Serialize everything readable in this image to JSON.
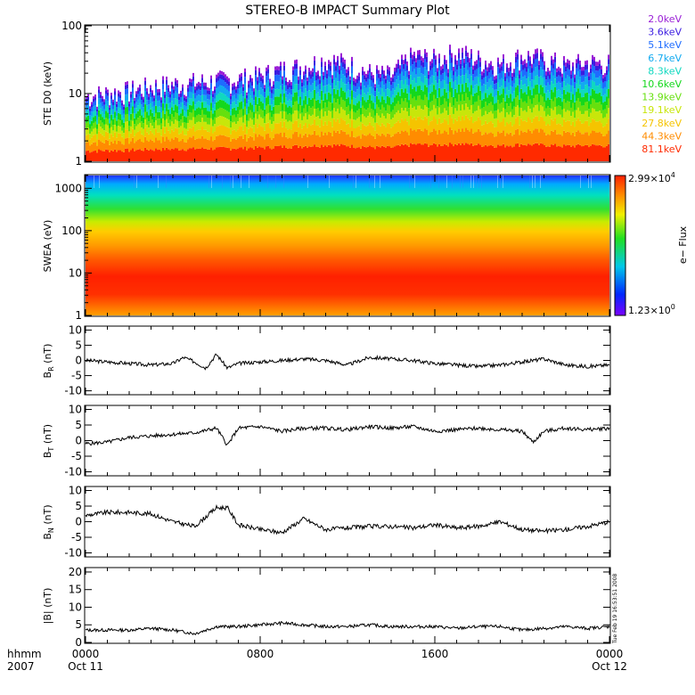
{
  "title": "STEREO-B IMPACT Summary Plot",
  "footer": {
    "time_label": "hhmm",
    "year_label": "2007",
    "timestamp": "Tue Feb 19 16:53:51 2008"
  },
  "colorbar": {
    "max_label": "2.99×10",
    "max_exp": "4",
    "min_label": "1.23×10",
    "min_exp": "0",
    "axis_label": "e− Flux"
  },
  "ste_legend": [
    {
      "label": "2.0keV",
      "color": "#9a1fd6"
    },
    {
      "label": "3.6keV",
      "color": "#3a1be0"
    },
    {
      "label": "5.1keV",
      "color": "#1e6cff"
    },
    {
      "label": "6.7keV",
      "color": "#12aaf0"
    },
    {
      "label": "8.3keV",
      "color": "#10d8c0"
    },
    {
      "label": "10.6keV",
      "color": "#14d81c"
    },
    {
      "label": "13.9keV",
      "color": "#66e00e"
    },
    {
      "label": "19.1keV",
      "color": "#c8e60a"
    },
    {
      "label": "27.8keV",
      "color": "#f5c400"
    },
    {
      "label": "44.3keV",
      "color": "#ff8c00"
    },
    {
      "label": "81.1keV",
      "color": "#ff2a00"
    }
  ],
  "chart_data": [
    {
      "panel": "STE D0",
      "type": "area",
      "ylabel": "STE D0 (keV)",
      "yscale": "log",
      "ylim": [
        1,
        100
      ],
      "y_ticks": [
        "1",
        "10",
        "100"
      ],
      "x_time_hours": [
        0,
        1,
        2,
        3,
        4,
        5,
        6,
        7,
        8,
        9,
        10,
        11,
        12,
        13,
        14,
        15,
        16,
        17,
        18,
        19,
        20,
        21,
        22,
        23,
        24
      ],
      "top_envelope_keV": [
        10,
        11,
        12,
        14,
        15,
        16,
        17,
        18,
        20,
        25,
        28,
        35,
        30,
        22,
        20,
        40,
        35,
        45,
        35,
        30,
        40,
        35,
        28,
        32,
        30
      ]
    },
    {
      "panel": "SWEA",
      "type": "heatmap",
      "ylabel": "SWEA (eV)",
      "yscale": "log",
      "ylim": [
        1,
        2000
      ],
      "y_ticks": [
        "1",
        "10",
        "100",
        "1000"
      ]
    },
    {
      "panel": "BR",
      "type": "line",
      "ylabel": "B",
      "ylabel_sub": "R",
      "ylabel_unit": " (nT)",
      "ylim": [
        -11,
        11
      ],
      "y_ticks": [
        "-10",
        "-5",
        "0",
        "5",
        "10"
      ],
      "x_hours": [
        0,
        1,
        2,
        3,
        4,
        4.5,
        5,
        5.5,
        6,
        6.5,
        7,
        8,
        9,
        10,
        11,
        12,
        13,
        14,
        15,
        16,
        17,
        18,
        19,
        20,
        21,
        22,
        23,
        24
      ],
      "y_nT": [
        0,
        -0.5,
        -1,
        -1.5,
        -1,
        1,
        -0.5,
        -2.5,
        2,
        -2.5,
        -1,
        -0.5,
        0,
        0.5,
        0,
        -1.5,
        1,
        0.5,
        0,
        -1,
        -1.5,
        -2,
        -1.5,
        -0.5,
        0.5,
        -1.5,
        -2,
        -1.5
      ]
    },
    {
      "panel": "BT",
      "type": "line",
      "ylabel": "B",
      "ylabel_sub": "T",
      "ylabel_unit": " (nT)",
      "ylim": [
        -11,
        11
      ],
      "y_ticks": [
        "-10",
        "-5",
        "0",
        "5",
        "10"
      ],
      "x_hours": [
        0,
        1,
        2,
        3,
        4,
        5,
        6,
        6.5,
        7,
        8,
        9,
        10,
        11,
        12,
        13,
        14,
        15,
        16,
        17,
        18,
        19,
        20,
        20.5,
        21,
        22,
        23,
        24
      ],
      "y_nT": [
        -1,
        -0.5,
        1,
        1.5,
        2,
        2.5,
        4,
        -1.5,
        4,
        4.5,
        3,
        4,
        4,
        3.5,
        4.5,
        4,
        4.5,
        3,
        3.5,
        4,
        3.5,
        3,
        -0.5,
        3,
        4,
        3.5,
        4
      ]
    },
    {
      "panel": "BN",
      "type": "line",
      "ylabel": "B",
      "ylabel_sub": "N",
      "ylabel_unit": " (nT)",
      "ylim": [
        -11,
        11
      ],
      "y_ticks": [
        "-10",
        "-5",
        "0",
        "5",
        "10"
      ],
      "x_hours": [
        0,
        1,
        2,
        3,
        4,
        5,
        6,
        6.5,
        7,
        8,
        9,
        10,
        11,
        12,
        13,
        14,
        15,
        16,
        17,
        18,
        19,
        20,
        21,
        22,
        23,
        24
      ],
      "y_nT": [
        2,
        3,
        3,
        2.5,
        0,
        -1.5,
        4.5,
        4.5,
        -1,
        -2.5,
        -3.5,
        1,
        -2.5,
        -2,
        -1.5,
        -1.5,
        -2,
        -1,
        -2,
        -1.5,
        0,
        -2.5,
        -3,
        -2.5,
        -1.5,
        0
      ]
    },
    {
      "panel": "B magnitude",
      "type": "line",
      "ylabel": "|B| (nT)",
      "ylim": [
        0,
        21
      ],
      "y_ticks": [
        "0",
        "5",
        "10",
        "15",
        "20"
      ],
      "x_hours": [
        0,
        1,
        2,
        3,
        4,
        5,
        6,
        7,
        8,
        9,
        10,
        11,
        12,
        13,
        14,
        15,
        16,
        17,
        18,
        19,
        20,
        21,
        22,
        23,
        24
      ],
      "y_nT": [
        3.5,
        3.5,
        3.5,
        4,
        3.5,
        2.5,
        4.5,
        4.5,
        5,
        5.5,
        5,
        4.5,
        4.5,
        5,
        4.5,
        4.5,
        4.5,
        4,
        4.5,
        4.5,
        3.5,
        4,
        4.5,
        4,
        4.5
      ]
    }
  ],
  "x_axis": {
    "ticks": [
      {
        "hour": 0,
        "label": "0000",
        "date": "Oct 11"
      },
      {
        "hour": 8,
        "label": "0800",
        "date": ""
      },
      {
        "hour": 16,
        "label": "1600",
        "date": ""
      },
      {
        "hour": 24,
        "label": "0000",
        "date": "Oct 12"
      }
    ]
  }
}
